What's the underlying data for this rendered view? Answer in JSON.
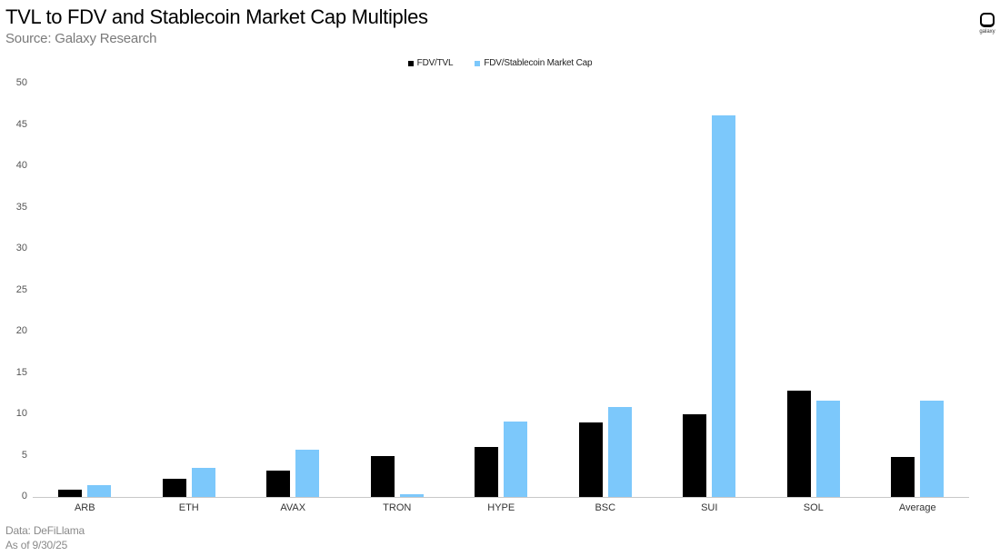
{
  "header": {
    "title": "TVL to FDV and Stablecoin Market Cap Multiples",
    "subtitle": "Source: Galaxy Research",
    "logo_text": "galaxy"
  },
  "footer": {
    "data_note": "Data: DeFiLlama",
    "as_of": "As of 9/30/25"
  },
  "colors": {
    "fdv_tvl": "#000000",
    "fdv_stablecoin": "#7cc8fb",
    "axis": "#c8c8c8"
  },
  "chart_data": {
    "type": "bar",
    "title": "TVL to FDV and Stablecoin Market Cap Multiples",
    "subtitle": "Source: Galaxy Research",
    "xlabel": "",
    "ylabel": "",
    "ylim": [
      0,
      50
    ],
    "yticks": [
      0,
      5,
      10,
      15,
      20,
      25,
      30,
      35,
      40,
      45,
      50
    ],
    "grid": false,
    "legend_position": "top",
    "categories": [
      "ARB",
      "ETH",
      "AVAX",
      "TRON",
      "HYPE",
      "BSC",
      "SUI",
      "SOL",
      "Average"
    ],
    "series": [
      {
        "name": "FDV/TVL",
        "color": "#000000",
        "values": [
          0.9,
          2.2,
          3.2,
          4.9,
          6.0,
          9.0,
          10.0,
          12.9,
          4.8
        ]
      },
      {
        "name": "FDV/Stablecoin Market Cap",
        "color": "#7cc8fb",
        "values": [
          1.4,
          3.5,
          5.7,
          0.3,
          9.1,
          10.9,
          46.1,
          11.6,
          11.6
        ]
      }
    ],
    "annotations": [
      "Data: DeFiLlama",
      "As of 9/30/25"
    ]
  }
}
